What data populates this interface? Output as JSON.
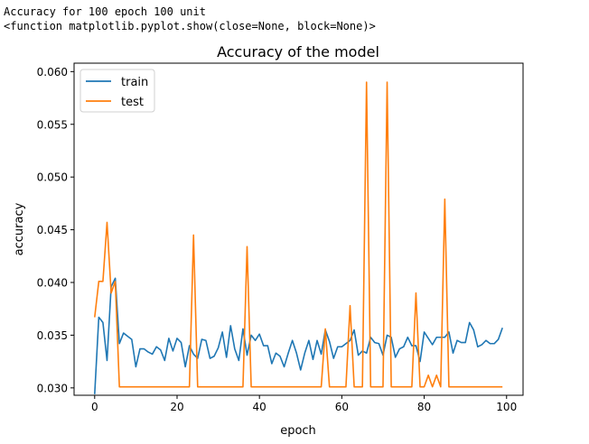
{
  "console": {
    "line1": "Accuracy for 100 epoch 100 unit",
    "line2": "<function matplotlib.pyplot.show(close=None, block=None)>"
  },
  "chart_data": {
    "type": "line",
    "title": "Accuracy of the model",
    "xlabel": "epoch",
    "ylabel": "accuracy",
    "xlim": [
      -5,
      104
    ],
    "ylim": [
      0.0293,
      0.0608
    ],
    "x_ticks": [
      0,
      20,
      40,
      60,
      80,
      100
    ],
    "x_tick_labels": [
      "0",
      "20",
      "40",
      "60",
      "80",
      "100"
    ],
    "y_ticks": [
      0.03,
      0.035,
      0.04,
      0.045,
      0.05,
      0.055,
      0.06
    ],
    "y_tick_labels": [
      "0.030",
      "0.035",
      "0.040",
      "0.045",
      "0.050",
      "0.055",
      "0.060"
    ],
    "grid": false,
    "legend_position": "top-left",
    "series": [
      {
        "name": "train",
        "color": "#1f77b4",
        "x": [
          0,
          1,
          2,
          3,
          4,
          5,
          6,
          7,
          8,
          9,
          10,
          11,
          12,
          13,
          14,
          15,
          16,
          17,
          18,
          19,
          20,
          21,
          22,
          23,
          24,
          25,
          26,
          27,
          28,
          29,
          30,
          31,
          32,
          33,
          34,
          35,
          36,
          37,
          38,
          39,
          40,
          41,
          42,
          43,
          44,
          45,
          46,
          47,
          48,
          49,
          50,
          51,
          52,
          53,
          54,
          55,
          56,
          57,
          58,
          59,
          60,
          61,
          62,
          63,
          64,
          65,
          66,
          67,
          68,
          69,
          70,
          71,
          72,
          73,
          74,
          75,
          76,
          77,
          78,
          79,
          80,
          81,
          82,
          83,
          84,
          85,
          86,
          87,
          88,
          89,
          90,
          91,
          92,
          93,
          94,
          95,
          96,
          97,
          98,
          99
        ],
        "values": [
          0.0294,
          0.0367,
          0.0362,
          0.0326,
          0.0396,
          0.0404,
          0.0342,
          0.0352,
          0.0349,
          0.0346,
          0.032,
          0.0337,
          0.0337,
          0.0334,
          0.0332,
          0.0339,
          0.0336,
          0.0326,
          0.0347,
          0.0335,
          0.0347,
          0.0343,
          0.032,
          0.034,
          0.0332,
          0.0328,
          0.0346,
          0.0345,
          0.0328,
          0.033,
          0.0338,
          0.0353,
          0.0329,
          0.0359,
          0.0337,
          0.0326,
          0.0356,
          0.0331,
          0.035,
          0.0345,
          0.0351,
          0.034,
          0.034,
          0.0323,
          0.0333,
          0.033,
          0.032,
          0.0333,
          0.0345,
          0.0333,
          0.0317,
          0.0333,
          0.0345,
          0.0327,
          0.0345,
          0.0332,
          0.0355,
          0.0344,
          0.0328,
          0.0339,
          0.0339,
          0.0342,
          0.0345,
          0.0355,
          0.0331,
          0.0335,
          0.0333,
          0.0348,
          0.0343,
          0.0342,
          0.0331,
          0.035,
          0.0348,
          0.0329,
          0.0337,
          0.0339,
          0.0348,
          0.034,
          0.034,
          0.0325,
          0.0353,
          0.0347,
          0.0341,
          0.0348,
          0.0348,
          0.0348,
          0.0353,
          0.0333,
          0.0345,
          0.0343,
          0.0343,
          0.0362,
          0.0355,
          0.0339,
          0.0341,
          0.0345,
          0.0342,
          0.0342,
          0.0346,
          0.0357
        ]
      },
      {
        "name": "test",
        "color": "#ff7f0e",
        "x": [
          0,
          1,
          2,
          3,
          4,
          5,
          6,
          7,
          8,
          9,
          10,
          11,
          12,
          13,
          14,
          15,
          16,
          17,
          18,
          19,
          20,
          21,
          22,
          23,
          24,
          25,
          26,
          27,
          28,
          29,
          30,
          31,
          32,
          33,
          34,
          35,
          36,
          37,
          38,
          39,
          40,
          41,
          42,
          43,
          44,
          45,
          46,
          47,
          48,
          49,
          50,
          51,
          52,
          53,
          54,
          55,
          56,
          57,
          58,
          59,
          60,
          61,
          62,
          63,
          64,
          65,
          66,
          67,
          68,
          69,
          70,
          71,
          72,
          73,
          74,
          75,
          76,
          77,
          78,
          79,
          80,
          81,
          82,
          83,
          84,
          85,
          86,
          87,
          88,
          89,
          90,
          91,
          92,
          93,
          94,
          95,
          96,
          97,
          98,
          99
        ],
        "values": [
          0.0367,
          0.0401,
          0.0401,
          0.0457,
          0.039,
          0.0401,
          0.0301,
          0.0301,
          0.0301,
          0.0301,
          0.0301,
          0.0301,
          0.0301,
          0.0301,
          0.0301,
          0.0301,
          0.0301,
          0.0301,
          0.0301,
          0.0301,
          0.0301,
          0.0301,
          0.0301,
          0.0301,
          0.0445,
          0.0301,
          0.0301,
          0.0301,
          0.0301,
          0.0301,
          0.0301,
          0.0301,
          0.0301,
          0.0301,
          0.0301,
          0.0301,
          0.0301,
          0.0434,
          0.0301,
          0.0301,
          0.0301,
          0.0301,
          0.0301,
          0.0301,
          0.0301,
          0.0301,
          0.0301,
          0.0301,
          0.0301,
          0.0301,
          0.0301,
          0.0301,
          0.0301,
          0.0301,
          0.0301,
          0.0301,
          0.0356,
          0.0301,
          0.0301,
          0.0301,
          0.0301,
          0.0301,
          0.0378,
          0.0301,
          0.0301,
          0.0301,
          0.059,
          0.0301,
          0.0301,
          0.0301,
          0.0301,
          0.059,
          0.0301,
          0.0301,
          0.0301,
          0.0301,
          0.0301,
          0.0301,
          0.039,
          0.0301,
          0.0301,
          0.0312,
          0.0301,
          0.0312,
          0.0301,
          0.0479,
          0.0301,
          0.0301,
          0.0301,
          0.0301,
          0.0301,
          0.0301,
          0.0301,
          0.0301,
          0.0301,
          0.0301,
          0.0301,
          0.0301,
          0.0301,
          0.0301
        ]
      }
    ]
  }
}
